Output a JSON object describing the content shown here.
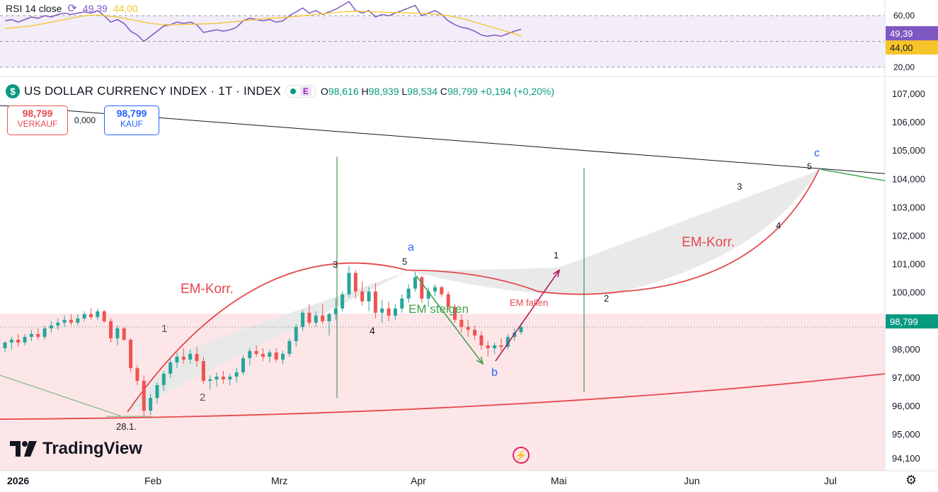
{
  "header": {
    "symbol": "US DOLLAR CURRENCY INDEX · 1T · INDEX",
    "coin_glyph": "$",
    "event_badge": "E",
    "open_label": "O",
    "open": "98,616",
    "high_label": "H",
    "high": "98,939",
    "low_label": "L",
    "low": "98,534",
    "close_label": "C",
    "close": "98,799",
    "change": "+0,194 (+0,20%)"
  },
  "trade": {
    "sell_price": "98,799",
    "sell_label": "VERKAUF",
    "spread": "0,000",
    "buy_price": "98,799",
    "buy_label": "KAUF"
  },
  "rsi": {
    "title": "RSI 14 close",
    "value": "49,39",
    "ma_value": "44,00",
    "axis_ticks": [
      "60,00",
      "20,00"
    ],
    "badge_rsi": "49,39",
    "badge_ma": "44,00"
  },
  "branding": {
    "logo_text": "TradingView"
  },
  "x_axis": {
    "labels": [
      "2026",
      "Feb",
      "Mrz",
      "Apr",
      "Mai",
      "Jun",
      "Jul"
    ]
  },
  "annotations": {
    "em_korr_left": "EM-Korr.",
    "em_korr_right": "EM-Korr.",
    "em_steigen": "EM steigen",
    "em_fallen": "EM fallen",
    "date_low": "28.1.",
    "wave_a": "a",
    "wave_b": "b",
    "wave_c": "c",
    "w1_left": "1",
    "w2_left": "2",
    "w3_left": "3",
    "w4_left": "4",
    "w5_left": "5",
    "w1_right": "1",
    "w2_right": "2",
    "w3_right": "3",
    "w4_right": "4",
    "w5_right": "5"
  },
  "colors": {
    "up": "#26a69a",
    "down": "#ef5350",
    "rsi_line": "#7e57c2",
    "rsi_ma": "#f7c42b",
    "rsi_band": "#ede7f6",
    "em_red": "#e5484d",
    "em_green": "#3fa34d",
    "arrow_pink": "#b0185e",
    "wave_blue": "#2962ff",
    "zone_pink": "#fde2e4",
    "price_badge": "#089981"
  },
  "chart_data": {
    "type": "candlestick",
    "title": "US DOLLAR CURRENCY INDEX · 1T · INDEX",
    "y_axis_ticks": [
      107000,
      106000,
      105000,
      104000,
      103000,
      102000,
      101000,
      100000,
      99000,
      98000,
      97000,
      96000,
      95000,
      94100
    ],
    "y_axis_labels": [
      "107,000",
      "106,000",
      "105,000",
      "104,000",
      "103,000",
      "102,000",
      "101,000",
      "100,000",
      "99,000",
      "98,000",
      "97,000",
      "96,000",
      "95,000",
      "94,100"
    ],
    "ylim": [
      93800,
      107400
    ],
    "x_labels": [
      "2026",
      "Feb",
      "Mrz",
      "Apr",
      "Mai",
      "Jun",
      "Jul"
    ],
    "last_price": "98,799",
    "candles": [
      {
        "o": 98.05,
        "h": 98.3,
        "l": 97.9,
        "c": 98.25
      },
      {
        "o": 98.25,
        "h": 98.45,
        "l": 98.0,
        "c": 98.35
      },
      {
        "o": 98.35,
        "h": 98.55,
        "l": 98.1,
        "c": 98.25
      },
      {
        "o": 98.25,
        "h": 98.55,
        "l": 98.15,
        "c": 98.45
      },
      {
        "o": 98.45,
        "h": 98.7,
        "l": 98.3,
        "c": 98.55
      },
      {
        "o": 98.55,
        "h": 98.75,
        "l": 98.35,
        "c": 98.45
      },
      {
        "o": 98.45,
        "h": 98.85,
        "l": 98.35,
        "c": 98.75
      },
      {
        "o": 98.75,
        "h": 99.0,
        "l": 98.6,
        "c": 98.85
      },
      {
        "o": 98.85,
        "h": 99.1,
        "l": 98.7,
        "c": 98.95
      },
      {
        "o": 98.95,
        "h": 99.2,
        "l": 98.8,
        "c": 99.05
      },
      {
        "o": 99.05,
        "h": 99.25,
        "l": 98.85,
        "c": 98.95
      },
      {
        "o": 98.95,
        "h": 99.25,
        "l": 98.85,
        "c": 99.1
      },
      {
        "o": 99.1,
        "h": 99.35,
        "l": 99.0,
        "c": 99.25
      },
      {
        "o": 99.25,
        "h": 99.45,
        "l": 99.05,
        "c": 99.15
      },
      {
        "o": 99.15,
        "h": 99.45,
        "l": 99.05,
        "c": 99.35
      },
      {
        "o": 99.35,
        "h": 99.4,
        "l": 98.95,
        "c": 99.0
      },
      {
        "o": 99.0,
        "h": 99.1,
        "l": 98.25,
        "c": 98.4
      },
      {
        "o": 98.4,
        "h": 98.85,
        "l": 98.15,
        "c": 98.75
      },
      {
        "o": 98.75,
        "h": 98.8,
        "l": 98.3,
        "c": 98.35
      },
      {
        "o": 98.35,
        "h": 98.4,
        "l": 97.2,
        "c": 97.35
      },
      {
        "o": 97.35,
        "h": 97.45,
        "l": 96.75,
        "c": 96.9
      },
      {
        "o": 96.9,
        "h": 97.1,
        "l": 95.6,
        "c": 95.85
      },
      {
        "o": 95.85,
        "h": 96.45,
        "l": 95.7,
        "c": 96.3
      },
      {
        "o": 96.3,
        "h": 96.85,
        "l": 96.1,
        "c": 96.75
      },
      {
        "o": 96.75,
        "h": 97.25,
        "l": 96.55,
        "c": 97.15
      },
      {
        "o": 97.15,
        "h": 97.7,
        "l": 97.0,
        "c": 97.55
      },
      {
        "o": 97.55,
        "h": 97.9,
        "l": 97.35,
        "c": 97.75
      },
      {
        "o": 97.75,
        "h": 98.05,
        "l": 97.5,
        "c": 97.65
      },
      {
        "o": 97.65,
        "h": 98.0,
        "l": 97.5,
        "c": 97.85
      },
      {
        "o": 97.85,
        "h": 98.1,
        "l": 97.4,
        "c": 97.6
      },
      {
        "o": 97.6,
        "h": 97.75,
        "l": 96.8,
        "c": 96.9
      },
      {
        "o": 96.9,
        "h": 97.1,
        "l": 96.6,
        "c": 96.95
      },
      {
        "o": 96.95,
        "h": 97.2,
        "l": 96.7,
        "c": 97.05
      },
      {
        "o": 97.05,
        "h": 97.25,
        "l": 96.8,
        "c": 96.95
      },
      {
        "o": 96.95,
        "h": 97.15,
        "l": 96.75,
        "c": 97.05
      },
      {
        "o": 97.05,
        "h": 97.35,
        "l": 96.85,
        "c": 97.2
      },
      {
        "o": 97.2,
        "h": 97.8,
        "l": 97.1,
        "c": 97.7
      },
      {
        "o": 97.7,
        "h": 98.05,
        "l": 97.45,
        "c": 97.95
      },
      {
        "o": 97.95,
        "h": 98.15,
        "l": 97.75,
        "c": 97.85
      },
      {
        "o": 97.85,
        "h": 98.05,
        "l": 97.6,
        "c": 97.75
      },
      {
        "o": 97.75,
        "h": 98.0,
        "l": 97.55,
        "c": 97.9
      },
      {
        "o": 97.9,
        "h": 98.05,
        "l": 97.55,
        "c": 97.65
      },
      {
        "o": 97.65,
        "h": 97.95,
        "l": 97.5,
        "c": 97.85
      },
      {
        "o": 97.85,
        "h": 98.4,
        "l": 97.75,
        "c": 98.3
      },
      {
        "o": 98.3,
        "h": 98.9,
        "l": 98.1,
        "c": 98.8
      },
      {
        "o": 98.8,
        "h": 99.4,
        "l": 98.65,
        "c": 99.3
      },
      {
        "o": 99.3,
        "h": 99.6,
        "l": 98.85,
        "c": 98.95
      },
      {
        "o": 98.95,
        "h": 99.35,
        "l": 98.8,
        "c": 99.2
      },
      {
        "o": 99.2,
        "h": 99.6,
        "l": 98.9,
        "c": 99.0
      },
      {
        "o": 99.0,
        "h": 99.3,
        "l": 98.5,
        "c": 99.25
      },
      {
        "o": 99.25,
        "h": 99.8,
        "l": 99.05,
        "c": 99.45
      },
      {
        "o": 99.45,
        "h": 100.05,
        "l": 99.35,
        "c": 99.95
      },
      {
        "o": 99.95,
        "h": 100.95,
        "l": 99.85,
        "c": 100.7
      },
      {
        "o": 100.7,
        "h": 100.8,
        "l": 99.8,
        "c": 100.05
      },
      {
        "o": 100.05,
        "h": 100.4,
        "l": 99.55,
        "c": 99.7
      },
      {
        "o": 99.7,
        "h": 100.2,
        "l": 99.35,
        "c": 100.05
      },
      {
        "o": 100.05,
        "h": 100.35,
        "l": 99.1,
        "c": 99.3
      },
      {
        "o": 99.3,
        "h": 99.75,
        "l": 98.95,
        "c": 99.45
      },
      {
        "o": 99.45,
        "h": 99.7,
        "l": 99.0,
        "c": 99.2
      },
      {
        "o": 99.2,
        "h": 99.6,
        "l": 99.05,
        "c": 99.45
      },
      {
        "o": 99.45,
        "h": 99.95,
        "l": 99.3,
        "c": 99.8
      },
      {
        "o": 99.8,
        "h": 100.3,
        "l": 99.65,
        "c": 100.15
      },
      {
        "o": 100.15,
        "h": 100.75,
        "l": 100.05,
        "c": 100.55
      },
      {
        "o": 100.55,
        "h": 100.6,
        "l": 99.65,
        "c": 99.8
      },
      {
        "o": 99.8,
        "h": 100.2,
        "l": 99.5,
        "c": 100.05
      },
      {
        "o": 100.05,
        "h": 100.3,
        "l": 99.9,
        "c": 100.2
      },
      {
        "o": 100.2,
        "h": 100.25,
        "l": 99.85,
        "c": 99.95
      },
      {
        "o": 99.95,
        "h": 100.05,
        "l": 99.4,
        "c": 99.5
      },
      {
        "o": 99.5,
        "h": 99.6,
        "l": 98.95,
        "c": 99.05
      },
      {
        "o": 99.05,
        "h": 99.25,
        "l": 98.6,
        "c": 98.8
      },
      {
        "o": 98.8,
        "h": 99.05,
        "l": 98.45,
        "c": 98.7
      },
      {
        "o": 98.7,
        "h": 98.85,
        "l": 98.35,
        "c": 98.5
      },
      {
        "o": 98.5,
        "h": 98.65,
        "l": 98.0,
        "c": 98.15
      },
      {
        "o": 98.15,
        "h": 98.3,
        "l": 97.75,
        "c": 98.05
      },
      {
        "o": 98.05,
        "h": 98.25,
        "l": 97.85,
        "c": 98.15
      },
      {
        "o": 98.15,
        "h": 98.4,
        "l": 97.95,
        "c": 98.1
      },
      {
        "o": 98.1,
        "h": 98.55,
        "l": 98.0,
        "c": 98.45
      },
      {
        "o": 98.45,
        "h": 98.75,
        "l": 98.3,
        "c": 98.6
      },
      {
        "o": 98.616,
        "h": 98.939,
        "l": 98.534,
        "c": 98.799
      }
    ],
    "rsi_ylim": [
      15,
      70
    ],
    "rsi_line": [
      56,
      57,
      55,
      57,
      59,
      58,
      60,
      59,
      61,
      62,
      61,
      62,
      63,
      62,
      64,
      60,
      55,
      57,
      54,
      48,
      45,
      40,
      44,
      48,
      52,
      53,
      55,
      54,
      55,
      53,
      47,
      48,
      49,
      48,
      49,
      51,
      56,
      58,
      57,
      56,
      57,
      55,
      56,
      60,
      63,
      66,
      62,
      64,
      61,
      63,
      65,
      68,
      71,
      64,
      62,
      64,
      59,
      61,
      60,
      62,
      64,
      66,
      68,
      60,
      62,
      64,
      61,
      56,
      53,
      51,
      50,
      48,
      45,
      44,
      45,
      44,
      46,
      48,
      49.39
    ],
    "rsi_ma": [
      50,
      50.5,
      51,
      51.5,
      52,
      53,
      54,
      55,
      56,
      57,
      58,
      59,
      60,
      60.3,
      60.5,
      60.2,
      59.5,
      59,
      58,
      57,
      56,
      55,
      54,
      53.5,
      53,
      53,
      53,
      53.2,
      53.4,
      53.5,
      53.6,
      53.8,
      54,
      54.5,
      55,
      55.5,
      56,
      56.5,
      57,
      57.5,
      58,
      58.3,
      58.6,
      59,
      59.5,
      60,
      60.5,
      61,
      61.5,
      62,
      62.5,
      63,
      63.3,
      63.5,
      63.4,
      63.2,
      63,
      62.8,
      62.6,
      62.4,
      62.3,
      62.2,
      62,
      61.8,
      61.5,
      61,
      60.5,
      60,
      59,
      58,
      56.5,
      55,
      53.5,
      52,
      50.5,
      49,
      47.5,
      46,
      44
    ],
    "resistance_line": {
      "from": 106.2,
      "to": 104.2
    },
    "support_curve": {
      "from": 95.5,
      "to": 97.2
    }
  }
}
